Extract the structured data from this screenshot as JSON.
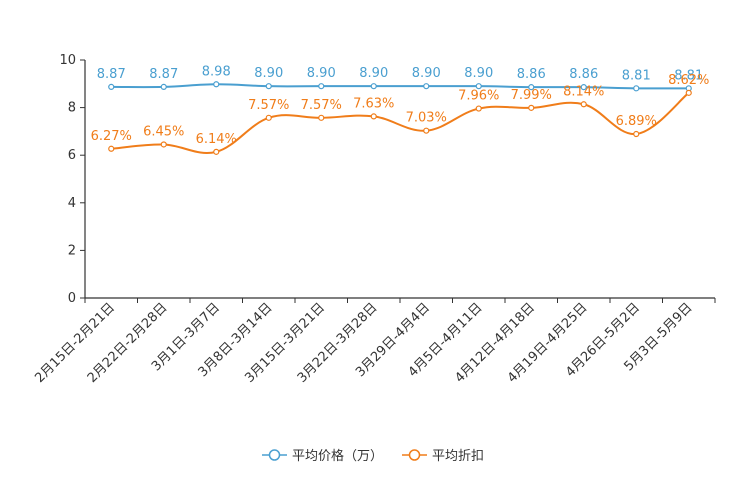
{
  "chart_data": {
    "type": "line",
    "title": "",
    "xlabel": "",
    "ylabel": "",
    "ylim": [
      0,
      10
    ],
    "yticks": [
      0,
      2,
      4,
      6,
      8,
      10
    ],
    "grid": false,
    "legend_position": "bottom-center",
    "categories": [
      "2月15日-2月21日",
      "2月22日-2月28日",
      "3月1日-3月7日",
      "3月8日-3月14日",
      "3月15日-3月21日",
      "3月22日-3月28日",
      "3月29日-4月4日",
      "4月5日-4月11日",
      "4月12日-4月18日",
      "4月19日-4月25日",
      "4月26日-5月2日",
      "5月3日-5月9日"
    ],
    "series": [
      {
        "name": "平均价格（万）",
        "color": "#4a9fd0",
        "values": [
          8.87,
          8.87,
          8.98,
          8.9,
          8.9,
          8.9,
          8.9,
          8.9,
          8.86,
          8.86,
          8.81,
          8.81
        ],
        "labels": [
          "8.87",
          "8.87",
          "8.98",
          "8.90",
          "8.90",
          "8.90",
          "8.90",
          "8.90",
          "8.86",
          "8.86",
          "8.81",
          "8.81"
        ]
      },
      {
        "name": "平均折扣",
        "color": "#f07d1a",
        "values": [
          6.27,
          6.45,
          6.14,
          7.57,
          7.57,
          7.63,
          7.03,
          7.96,
          7.99,
          8.14,
          6.89,
          8.62
        ],
        "labels": [
          "6.27%",
          "6.45%",
          "6.14%",
          "7.57%",
          "7.57%",
          "7.63%",
          "7.03%",
          "7.96%",
          "7.99%",
          "8.14%",
          "6.89%",
          "8.62%"
        ]
      }
    ]
  }
}
